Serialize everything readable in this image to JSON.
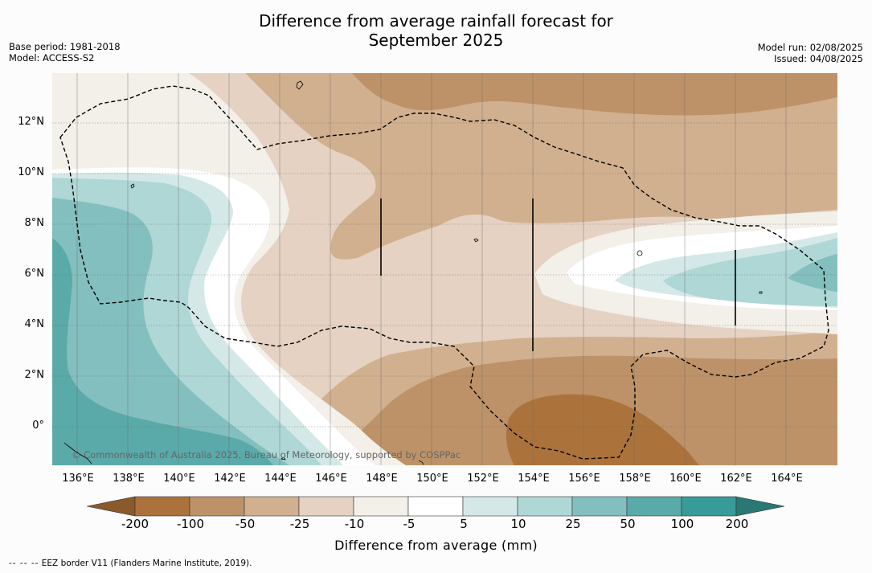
{
  "title_line1": "Difference from average rainfall forecast for",
  "title_line2": "September 2025",
  "meta_left": {
    "base_period": "Base period: 1981-2018",
    "model": "Model: ACCESS-S2"
  },
  "meta_right": {
    "model_run": "Model run: 02/08/2025",
    "issued": "Issued: 04/08/2025"
  },
  "latitude_labels": [
    "12°N",
    "10°N",
    "8°N",
    "6°N",
    "4°N",
    "2°N",
    "0°"
  ],
  "longitude_labels": [
    "136°E",
    "138°E",
    "140°E",
    "142°E",
    "144°E",
    "146°E",
    "148°E",
    "150°E",
    "152°E",
    "154°E",
    "156°E",
    "158°E",
    "160°E",
    "162°E",
    "164°E"
  ],
  "copyright": "© Commonwealth of Australia 2025, Bureau of Meteorology, supported by COSPPac",
  "colorbar": {
    "title": "Difference from average (mm)",
    "ticks": [
      "-200",
      "-100",
      "-50",
      "-25",
      "-10",
      "-5",
      "5",
      "10",
      "25",
      "50",
      "100",
      "200"
    ],
    "colors": [
      "#8a5a2c",
      "#ab733b",
      "#be9268",
      "#d1b08f",
      "#e5d2c2",
      "#f3efe9",
      "#ffffff",
      "#d4e9e7",
      "#aed7d6",
      "#84bfbf",
      "#5aaaa9",
      "#379b98",
      "#2a7874"
    ]
  },
  "legend_footer": {
    "symbol": "-- -- --",
    "text": "EEZ border V11 (Flanders Marine Institute, 2019)."
  }
}
